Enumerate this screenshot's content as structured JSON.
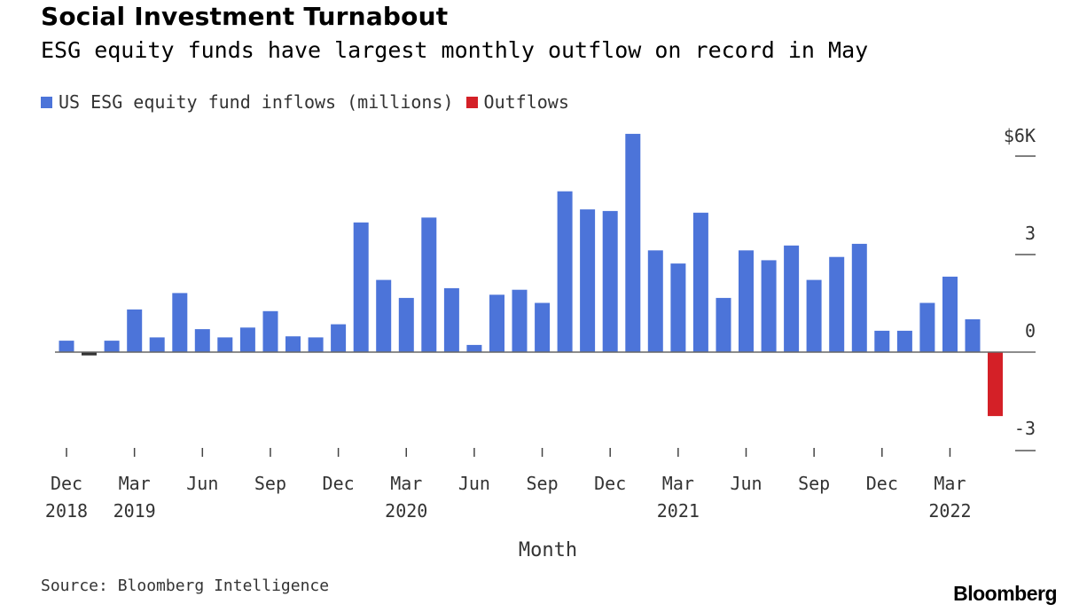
{
  "title": "Social Investment Turnabout",
  "subtitle": "ESG equity funds have largest monthly outflow on record in May",
  "legend": [
    {
      "label": "US ESG equity fund inflows (millions)",
      "color": "#4c74d9"
    },
    {
      "label": "Outflows",
      "color": "#d42027"
    }
  ],
  "source": "Source: Bloomberg Intelligence",
  "brand": "Bloomberg",
  "chart_data": {
    "type": "bar",
    "title": "Social Investment Turnabout",
    "subtitle": "ESG equity funds have largest monthly outflow on record in May",
    "xlabel": "Month",
    "ylabel": "",
    "ylim": [
      -3,
      6
    ],
    "y_ticks": [
      {
        "value": 6,
        "label": "$6K"
      },
      {
        "value": 3,
        "label": "3"
      },
      {
        "value": 0,
        "label": "0"
      },
      {
        "value": -3,
        "label": "-3"
      }
    ],
    "x_ticks": [
      {
        "index": 0,
        "month": "Dec",
        "year": "2018"
      },
      {
        "index": 3,
        "month": "Mar",
        "year": "2019"
      },
      {
        "index": 6,
        "month": "Jun",
        "year": ""
      },
      {
        "index": 9,
        "month": "Sep",
        "year": ""
      },
      {
        "index": 12,
        "month": "Dec",
        "year": ""
      },
      {
        "index": 15,
        "month": "Mar",
        "year": "2020"
      },
      {
        "index": 18,
        "month": "Jun",
        "year": ""
      },
      {
        "index": 21,
        "month": "Sep",
        "year": ""
      },
      {
        "index": 24,
        "month": "Dec",
        "year": ""
      },
      {
        "index": 27,
        "month": "Mar",
        "year": "2021"
      },
      {
        "index": 30,
        "month": "Jun",
        "year": ""
      },
      {
        "index": 33,
        "month": "Sep",
        "year": ""
      },
      {
        "index": 36,
        "month": "Dec",
        "year": ""
      },
      {
        "index": 39,
        "month": "Mar",
        "year": "2022"
      }
    ],
    "series": [
      {
        "name": "US ESG equity fund inflows (millions)",
        "color": "#4c74d9",
        "values": [
          0.35,
          -0.1,
          0.35,
          1.3,
          0.45,
          1.8,
          0.7,
          0.45,
          0.75,
          1.25,
          0.48,
          0.45,
          0.85,
          3.95,
          2.2,
          1.65,
          4.1,
          1.95,
          0.22,
          1.75,
          1.9,
          1.5,
          4.9,
          4.35,
          4.3,
          6.65,
          3.1,
          2.7,
          4.25,
          1.65,
          3.1,
          2.8,
          3.25,
          2.2,
          2.9,
          3.3,
          0.65,
          0.65,
          1.5,
          2.3,
          1.0,
          0
        ]
      },
      {
        "name": "Outflows",
        "color": "#d42027",
        "values": [
          0,
          0,
          0,
          0,
          0,
          0,
          0,
          0,
          0,
          0,
          0,
          0,
          0,
          0,
          0,
          0,
          0,
          0,
          0,
          0,
          0,
          0,
          0,
          0,
          0,
          0,
          0,
          0,
          0,
          0,
          0,
          0,
          0,
          0,
          0,
          0,
          0,
          0,
          0,
          0,
          0,
          -1.95
        ]
      }
    ]
  }
}
